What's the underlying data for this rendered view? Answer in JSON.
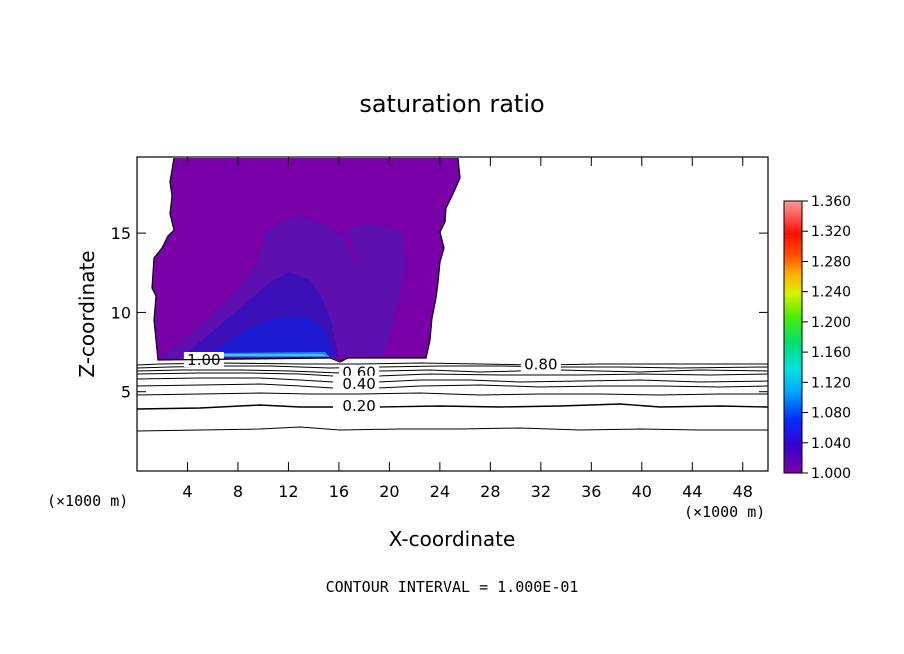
{
  "chart_data": {
    "type": "contour",
    "title": "saturation ratio",
    "xlabel": "X-coordinate",
    "ylabel": "Z-coordinate",
    "x_unit": "(×1000 m)",
    "z_unit": "(×1000 m)",
    "xlim": [
      0,
      50
    ],
    "ylim": [
      0,
      19.8
    ],
    "x_ticks": [
      4,
      8,
      12,
      16,
      20,
      24,
      28,
      32,
      36,
      40,
      44,
      48
    ],
    "y_ticks": [
      5,
      10,
      15
    ],
    "footer": "CONTOUR INTERVAL = 1.000E-01",
    "colorbar": {
      "min": 1.0,
      "max": 1.36,
      "ticks": [
        "1.360",
        "1.320",
        "1.280",
        "1.240",
        "1.200",
        "1.160",
        "1.120",
        "1.080",
        "1.040",
        "1.000"
      ]
    },
    "contour_labels": [
      {
        "text": "1.00",
        "x": 5.3,
        "z": 7.0
      },
      {
        "text": "0.80",
        "x": 32.0,
        "z": 6.7
      },
      {
        "text": "0.60",
        "x": 17.6,
        "z": 6.2
      },
      {
        "text": "0.40",
        "x": 17.6,
        "z": 5.5
      },
      {
        "text": "0.20",
        "x": 17.6,
        "z": 4.1
      }
    ],
    "colors": {
      "supersat_region": "#7a00aa",
      "level_1": "#5d0fb0",
      "level_2": "#3c10b8",
      "level_3": "#1d1ad2",
      "level_4": "#1e88ee",
      "level_5": "#3ec8f0"
    }
  }
}
